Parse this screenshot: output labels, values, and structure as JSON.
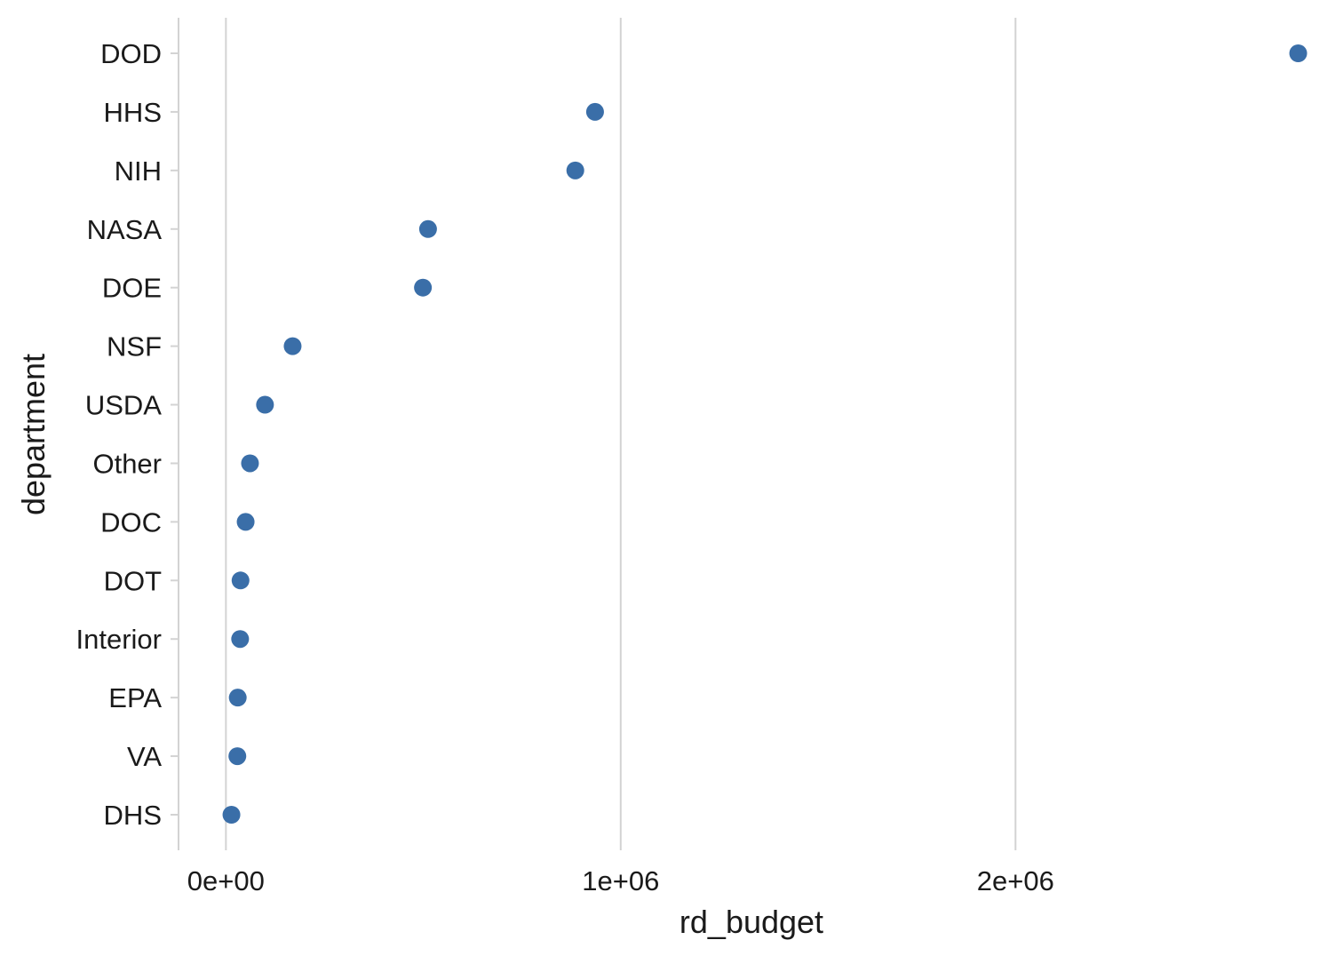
{
  "chart_data": {
    "type": "scatter",
    "title": "",
    "xlabel": "rd_budget",
    "ylabel": "department",
    "xlim": [
      -120000,
      2780000
    ],
    "x_ticks": [
      {
        "value": 0,
        "label": "0e+00"
      },
      {
        "value": 1000000,
        "label": "1e+06"
      },
      {
        "value": 2000000,
        "label": "2e+06"
      }
    ],
    "grid": {
      "vertical_major": true,
      "horizontal": false
    },
    "point_color": "#3a6ea8",
    "grid_color": "#d3d3d3",
    "categories": [
      "DOD",
      "HHS",
      "NIH",
      "NASA",
      "DOE",
      "NSF",
      "USDA",
      "Other",
      "DOC",
      "DOT",
      "Interior",
      "EPA",
      "VA",
      "DHS"
    ],
    "values": [
      2716000,
      935000,
      885000,
      512000,
      499000,
      169000,
      99000,
      61000,
      50000,
      37000,
      36000,
      30000,
      29000,
      14000
    ]
  }
}
